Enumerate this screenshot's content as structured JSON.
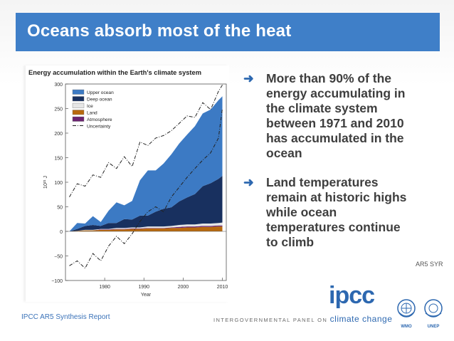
{
  "slide": {
    "title": "Oceans absorb most of the heat",
    "bullets": [
      "More than 90% of the energy accumulating in the climate system between 1971 and 2010 has accumulated in the ocean",
      "Land temperatures remain at historic highs while ocean temperatures continue to climb"
    ],
    "bullet_glyph": "➜",
    "source": "AR5 SYR",
    "footer_report": "IPCC AR5 Synthesis Report",
    "footer_panel_prefix": "INTERGOVERNMENTAL PANEL ON",
    "footer_panel_suffix": "climate change",
    "logo_text": "ipcc",
    "wmo_label": "WMO",
    "unep_label": "UNEP"
  },
  "colors": {
    "title_bar": "#3f7fc8",
    "upper_ocean": "#3c7ac4",
    "deep_ocean": "#18305f",
    "ice": "#e6e6e6",
    "land": "#b8690e",
    "atmosphere": "#6a2470"
  },
  "chart_data": {
    "type": "area",
    "stacked": true,
    "title": "Energy accumulation within the Earth's climate system",
    "ylabel": "10²¹ J",
    "xlabel": "Year",
    "xlim": [
      1970,
      2011
    ],
    "ylim": [
      -100,
      300
    ],
    "xticks": [
      1980,
      1990,
      2000,
      2010
    ],
    "yticks": [
      -100,
      -50,
      0,
      50,
      100,
      150,
      200,
      250,
      300
    ],
    "legend_position": "top-left",
    "x": [
      1971,
      1973,
      1975,
      1977,
      1979,
      1981,
      1983,
      1985,
      1987,
      1989,
      1991,
      1993,
      1995,
      1997,
      1999,
      2001,
      2003,
      2005,
      2007,
      2009,
      2010
    ],
    "series": [
      {
        "name": "Land",
        "values": [
          0,
          1,
          2,
          2,
          3,
          3,
          4,
          4,
          5,
          5,
          6,
          6,
          6,
          7,
          7,
          8,
          8,
          9,
          9,
          10,
          10
        ]
      },
      {
        "name": "Atmosphere",
        "values": [
          0,
          0,
          0,
          0,
          1,
          1,
          1,
          1,
          1,
          1,
          1,
          1,
          1,
          1,
          2,
          2,
          2,
          2,
          2,
          2,
          2
        ]
      },
      {
        "name": "Ice",
        "values": [
          0,
          0,
          1,
          1,
          1,
          1,
          2,
          2,
          2,
          2,
          3,
          3,
          3,
          3,
          4,
          4,
          4,
          5,
          5,
          5,
          6
        ]
      },
      {
        "name": "Deep ocean",
        "values": [
          0,
          4,
          8,
          10,
          6,
          12,
          10,
          18,
          16,
          24,
          22,
          30,
          36,
          38,
          48,
          55,
          62,
          76,
          82,
          90,
          95
        ]
      },
      {
        "name": "Upper ocean",
        "values": [
          0,
          12,
          5,
          18,
          8,
          25,
          42,
          28,
          38,
          72,
          92,
          84,
          92,
          108,
          118,
          128,
          138,
          148,
          150,
          160,
          162
        ]
      }
    ],
    "uncertainty": {
      "name": "Uncertainty",
      "upper": [
        70,
        97,
        92,
        115,
        110,
        140,
        128,
        152,
        132,
        182,
        175,
        190,
        195,
        205,
        220,
        235,
        232,
        262,
        248,
        285,
        298
      ],
      "lower": [
        -70,
        -60,
        -75,
        -45,
        -60,
        -30,
        -10,
        -25,
        -5,
        20,
        40,
        50,
        40,
        70,
        90,
        110,
        128,
        145,
        160,
        190,
        250
      ]
    }
  }
}
